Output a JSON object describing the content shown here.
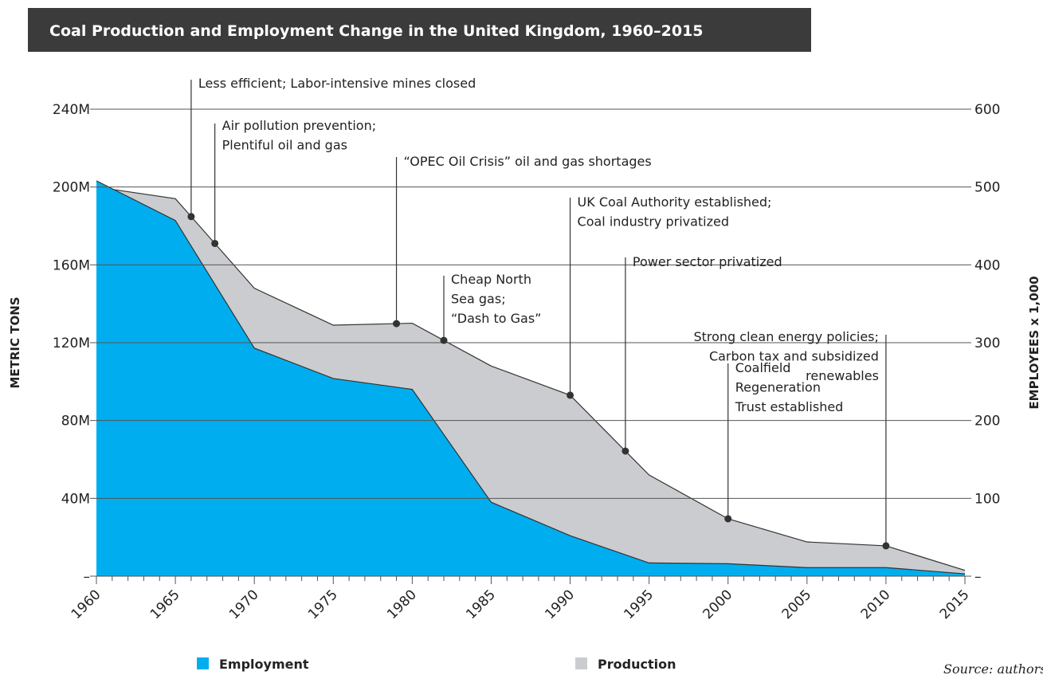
{
  "chart_data": {
    "type": "area",
    "title": "Coal Production and Employment Change in the United Kingdom, 1960–2015",
    "x": [
      1960,
      1965,
      1970,
      1975,
      1980,
      1985,
      1990,
      1995,
      2000,
      2005,
      2010,
      2015
    ],
    "series": [
      {
        "name": "Production",
        "color": "#cbcccf",
        "values": [
          200000000,
          194000000,
          148000000,
          129000000,
          130000000,
          108000000,
          93000000,
          52000000,
          29500000,
          17600000,
          15600000,
          3000000
        ]
      },
      {
        "name": "Employment",
        "color": "#00aeef",
        "axis": "y2",
        "values": [
          508,
          457,
          293,
          254,
          240,
          95,
          52,
          17,
          16,
          11,
          11,
          3
        ]
      }
    ],
    "xlim": [
      1960,
      2015
    ],
    "xticks": [
      1960,
      1965,
      1970,
      1975,
      1980,
      1985,
      1990,
      1995,
      2000,
      2005,
      2010,
      2015
    ],
    "ylim": [
      0,
      240000000
    ],
    "yticks": [
      {
        "value": 0,
        "label": "–"
      },
      {
        "value": 40000000,
        "label": "40M"
      },
      {
        "value": 80000000,
        "label": "80M"
      },
      {
        "value": 120000000,
        "label": "120M"
      },
      {
        "value": 160000000,
        "label": "160M"
      },
      {
        "value": 200000000,
        "label": "200M"
      },
      {
        "value": 240000000,
        "label": "240M"
      }
    ],
    "y2lim": [
      0,
      600
    ],
    "y2ticks": [
      {
        "value": 0,
        "label": "–"
      },
      100,
      200,
      300,
      400,
      500,
      600
    ],
    "ylabel": "METRIC TONS",
    "y2label": "EMPLOYEES x 1,000",
    "grid": true,
    "legend": "bottom",
    "annotations": [
      {
        "x": 1966,
        "text": [
          "Less efficient; Labor-intensive mines closed"
        ]
      },
      {
        "x": 1967.5,
        "text": [
          "Air pollution prevention;",
          "Plentiful oil and gas"
        ]
      },
      {
        "x": 1979,
        "text": [
          "“OPEC Oil Crisis” oil and gas shortages"
        ]
      },
      {
        "x": 1982,
        "text": [
          "Cheap North",
          "Sea gas;",
          "“Dash to Gas”"
        ]
      },
      {
        "x": 1990,
        "text": [
          "UK Coal Authority established;",
          "Coal industry privatized"
        ]
      },
      {
        "x": 1993.5,
        "text": [
          "Power sector privatized"
        ]
      },
      {
        "x": 2000,
        "text": [
          "Coalfield",
          "Regeneration",
          "Trust established"
        ]
      },
      {
        "x": 2010,
        "text": [
          "Strong clean energy policies;",
          "Carbon tax and subsidized",
          "renewables"
        ]
      }
    ],
    "source": "Source: authors"
  }
}
